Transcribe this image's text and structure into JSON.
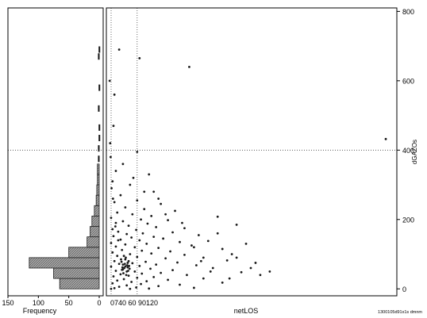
{
  "chart_data": [
    {
      "type": "bar",
      "orientation": "horizontal",
      "xlabel": "Frequency",
      "x_ticks": [
        "150",
        "100",
        "50",
        "0"
      ],
      "xlim": [
        150,
        0
      ],
      "bins": [
        {
          "center": 15,
          "value": 65
        },
        {
          "center": 45,
          "value": 75
        },
        {
          "center": 75,
          "value": 115
        },
        {
          "center": 105,
          "value": 50
        },
        {
          "center": 135,
          "value": 20
        },
        {
          "center": 165,
          "value": 15
        },
        {
          "center": 195,
          "value": 12
        },
        {
          "center": 225,
          "value": 8
        },
        {
          "center": 255,
          "value": 5
        },
        {
          "center": 285,
          "value": 4
        },
        {
          "center": 315,
          "value": 3
        },
        {
          "center": 345,
          "value": 3
        },
        {
          "center": 375,
          "value": 2
        },
        {
          "center": 405,
          "value": 2
        },
        {
          "center": 435,
          "value": 1
        },
        {
          "center": 465,
          "value": 1
        },
        {
          "center": 520,
          "value": 2
        },
        {
          "center": 580,
          "value": 1
        },
        {
          "center": 670,
          "value": 2
        },
        {
          "center": 690,
          "value": 1
        }
      ],
      "bin_width": 30,
      "hline": 400,
      "colors": {
        "bar_fill": "#a8a8a8",
        "bar_edge": "#222222"
      }
    },
    {
      "type": "scatter",
      "xlabel": "netLOS",
      "ylabel": "dGAZOs",
      "x_ticks": [
        "0",
        "30",
        "60",
        "90",
        "120"
      ],
      "x_tick_label_text": "0740 60 90120",
      "y_ticks": [
        "0",
        "200",
        "400",
        "600",
        "800"
      ],
      "xlim": [
        0,
        600
      ],
      "ylim": [
        -20,
        810
      ],
      "vline_x": 60,
      "hline_y": 400,
      "footer_note": "1300105d91x1s dmnm",
      "points": [
        [
          22,
          690
        ],
        [
          65,
          665
        ],
        [
          170,
          640
        ],
        [
          12,
          560
        ],
        [
          10,
          470
        ],
        [
          60,
          395
        ],
        [
          585,
          432
        ],
        [
          30,
          360
        ],
        [
          15,
          340
        ],
        [
          85,
          330
        ],
        [
          8,
          310
        ],
        [
          45,
          300
        ],
        [
          95,
          280
        ],
        [
          25,
          270
        ],
        [
          60,
          255
        ],
        [
          12,
          250
        ],
        [
          110,
          245
        ],
        [
          35,
          235
        ],
        [
          75,
          230
        ],
        [
          140,
          225
        ],
        [
          18,
          220
        ],
        [
          50,
          215
        ],
        [
          90,
          210
        ],
        [
          230,
          208
        ],
        [
          5,
          205
        ],
        [
          68,
          200
        ],
        [
          125,
          198
        ],
        [
          30,
          195
        ],
        [
          15,
          190
        ],
        [
          82,
          188
        ],
        [
          270,
          185
        ],
        [
          42,
          182
        ],
        [
          100,
          178
        ],
        [
          160,
          175
        ],
        [
          8,
          172
        ],
        [
          58,
          170
        ],
        [
          20,
          165
        ],
        [
          135,
          163
        ],
        [
          72,
          160
        ],
        [
          38,
          158
        ],
        [
          190,
          155
        ],
        [
          10,
          152
        ],
        [
          95,
          150
        ],
        [
          48,
          148
        ],
        [
          115,
          145
        ],
        [
          25,
          142
        ],
        [
          65,
          140
        ],
        [
          210,
          138
        ],
        [
          150,
          135
        ],
        [
          5,
          132
        ],
        [
          80,
          130
        ],
        [
          35,
          128
        ],
        [
          175,
          125
        ],
        [
          15,
          122
        ],
        [
          55,
          120
        ],
        [
          105,
          118
        ],
        [
          240,
          115
        ],
        [
          28,
          112
        ],
        [
          70,
          110
        ],
        [
          130,
          108
        ],
        [
          8,
          105
        ],
        [
          90,
          102
        ],
        [
          45,
          100
        ],
        [
          160,
          98
        ],
        [
          18,
          95
        ],
        [
          60,
          92
        ],
        [
          200,
          90
        ],
        [
          120,
          88
        ],
        [
          35,
          85
        ],
        [
          250,
          82
        ],
        [
          12,
          80
        ],
        [
          78,
          78
        ],
        [
          145,
          76
        ],
        [
          50,
          74
        ],
        [
          22,
          72
        ],
        [
          100,
          70
        ],
        [
          185,
          68
        ],
        [
          65,
          66
        ],
        [
          5,
          64
        ],
        [
          40,
          62
        ],
        [
          220,
          60
        ],
        [
          88,
          58
        ],
        [
          30,
          56
        ],
        [
          135,
          54
        ],
        [
          15,
          52
        ],
        [
          55,
          50
        ],
        [
          280,
          48
        ],
        [
          110,
          46
        ],
        [
          70,
          44
        ],
        [
          25,
          42
        ],
        [
          165,
          40
        ],
        [
          42,
          38
        ],
        [
          10,
          36
        ],
        [
          95,
          34
        ],
        [
          60,
          32
        ],
        [
          200,
          30
        ],
        [
          32,
          28
        ],
        [
          125,
          26
        ],
        [
          18,
          24
        ],
        [
          80,
          22
        ],
        [
          48,
          20
        ],
        [
          240,
          18
        ],
        [
          8,
          16
        ],
        [
          68,
          14
        ],
        [
          150,
          12
        ],
        [
          38,
          10
        ],
        [
          105,
          8
        ],
        [
          22,
          6
        ],
        [
          58,
          4
        ],
        [
          180,
          3
        ],
        [
          12,
          2
        ],
        [
          85,
          1
        ],
        [
          45,
          0
        ],
        [
          5,
          0
        ],
        [
          30,
          70
        ],
        [
          35,
          65
        ],
        [
          40,
          75
        ],
        [
          28,
          55
        ],
        [
          33,
          60
        ],
        [
          38,
          50
        ],
        [
          42,
          80
        ],
        [
          26,
          85
        ],
        [
          31,
          45
        ],
        [
          36,
          90
        ],
        [
          44,
          58
        ],
        [
          29,
          62
        ],
        [
          34,
          72
        ],
        [
          39,
          68
        ],
        [
          27,
          78
        ],
        [
          41,
          52
        ],
        [
          32,
          95
        ],
        [
          37,
          40
        ],
        [
          43,
          66
        ],
        [
          300,
          60
        ],
        [
          320,
          40
        ],
        [
          260,
          100
        ],
        [
          290,
          130
        ],
        [
          310,
          75
        ],
        [
          340,
          50
        ],
        [
          230,
          160
        ],
        [
          270,
          90
        ],
        [
          180,
          120
        ],
        [
          195,
          80
        ],
        [
          215,
          50
        ],
        [
          255,
          30
        ],
        [
          2,
          600
        ],
        [
          3,
          420
        ],
        [
          4,
          380
        ],
        [
          6,
          290
        ],
        [
          9,
          260
        ],
        [
          14,
          180
        ],
        [
          20,
          140
        ],
        [
          52,
          320
        ],
        [
          75,
          280
        ],
        [
          120,
          215
        ],
        [
          155,
          190
        ],
        [
          105,
          260
        ]
      ],
      "colors": {
        "point": "#1a1a1a"
      }
    }
  ]
}
